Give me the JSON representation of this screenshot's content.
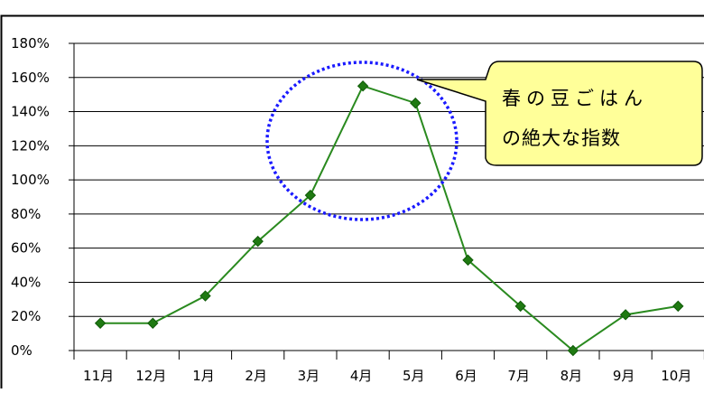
{
  "chart_data": {
    "type": "line",
    "categories": [
      "11月",
      "12月",
      "1月",
      "2月",
      "3月",
      "4月",
      "5月",
      "6月",
      "7月",
      "8月",
      "9月",
      "10月"
    ],
    "series": [
      {
        "values": [
          16,
          16,
          32,
          64,
          91,
          155,
          145,
          53,
          26,
          0,
          21,
          26
        ]
      }
    ],
    "y_tick_labels": [
      "0%",
      "20%",
      "40%",
      "60%",
      "80%",
      "100%",
      "120%",
      "140%",
      "160%",
      "180%"
    ],
    "ylim": [
      0,
      180
    ],
    "y_unit": "%",
    "grid": true,
    "colors": {
      "series": "#2a8a1f",
      "marker": "#1f7a12",
      "ellipse": "#1a1aff",
      "callout_fill": "#ffff99"
    },
    "annotations": [
      {
        "type": "ellipse",
        "around": [
          "4月",
          "5月"
        ]
      },
      {
        "type": "callout",
        "lines": [
          "春の豆ごはん",
          "の絶大な指数"
        ]
      }
    ]
  }
}
